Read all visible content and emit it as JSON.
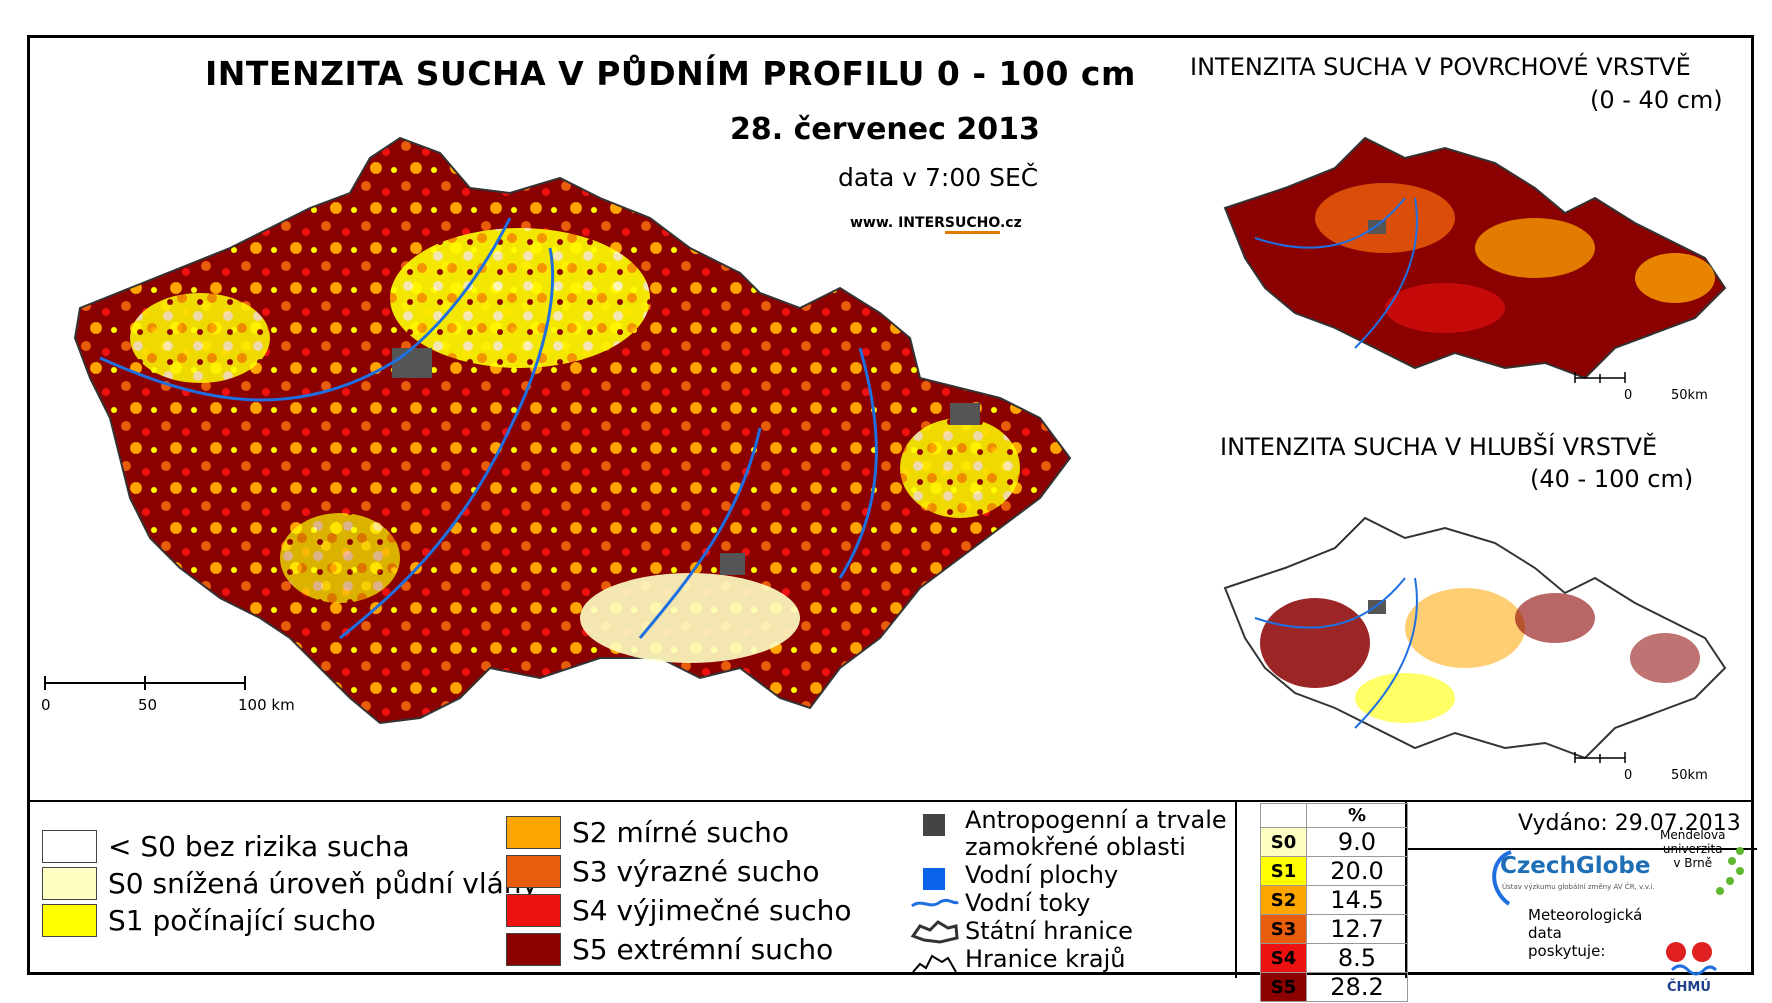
{
  "header": {
    "title": "INTENZITA SUCHA V PŮDNÍM PROFILU 0 - 100 cm",
    "date": "28. červenec 2013",
    "time": "data v 7:00 SEČ",
    "website_prefix": "www. INTER",
    "website_highlight": "SUCHO",
    "website_suffix": ".cz"
  },
  "main_map": {
    "scale": {
      "t0": "0",
      "t1": "50",
      "t2": "100 km"
    }
  },
  "inset_top": {
    "title": "INTENZITA SUCHA V POVRCHOVÉ VRSTVĚ",
    "subtitle": "(0 - 40 cm)",
    "scale": {
      "t0": "0",
      "t1": "50km"
    }
  },
  "inset_bottom": {
    "title": "INTENZITA SUCHA V HLUBŠÍ VRSTVĚ",
    "subtitle": "(40 - 100 cm)",
    "scale": {
      "t0": "0",
      "t1": "50km"
    }
  },
  "legend": {
    "classes": [
      {
        "label": "< S0 bez rizika sucha",
        "color": "#ffffff"
      },
      {
        "label": "S0 snížená úroveň půdní vláhy",
        "color": "#ffffc4"
      },
      {
        "label": "S1 počínající sucho",
        "color": "#ffff00"
      },
      {
        "label": "S2 mírné sucho",
        "color": "#ffa500"
      },
      {
        "label": "S3 výrazné sucho",
        "color": "#e85c0c"
      },
      {
        "label": "S4 výjimečné sucho",
        "color": "#ee1111"
      },
      {
        "label": "S5 extrémní sucho",
        "color": "#8b0000"
      }
    ],
    "features": [
      {
        "label": "Antropogenní a trvale",
        "icon": "gray-square-icon"
      },
      {
        "label": "zamokřené oblasti",
        "icon": ""
      },
      {
        "label": "Vodní plochy",
        "icon": "blue-square-icon"
      },
      {
        "label": "Vodní toky",
        "icon": "river-line-icon"
      },
      {
        "label": "Státní hranice",
        "icon": "state-border-icon"
      },
      {
        "label": "Hranice krajů",
        "icon": "region-border-icon"
      }
    ]
  },
  "stats": {
    "header": "%",
    "rows": [
      {
        "code": "S0",
        "value": "9.0",
        "color": "#ffffc4"
      },
      {
        "code": "S1",
        "value": "20.0",
        "color": "#ffff00"
      },
      {
        "code": "S2",
        "value": "14.5",
        "color": "#ffa500"
      },
      {
        "code": "S3",
        "value": "12.7",
        "color": "#e85c0c"
      },
      {
        "code": "S4",
        "value": "8.5",
        "color": "#ee1111"
      },
      {
        "code": "S5",
        "value": "28.2",
        "color": "#8b0000"
      }
    ]
  },
  "footer": {
    "issued": "Vydáno: 29.07.2013",
    "czechglobe": "CzechGlobe",
    "czechglobe_sub": "Ústav výzkumu globální změny AV ČR, v.v.i.",
    "mendel_line1": "Mendelova",
    "mendel_line2": "univerzita",
    "mendel_line3": "v Brně",
    "meteo_line1": "Meteorologická",
    "meteo_line2": "data",
    "meteo_line3": "poskytuje:",
    "chmu": "ČHMÚ"
  }
}
